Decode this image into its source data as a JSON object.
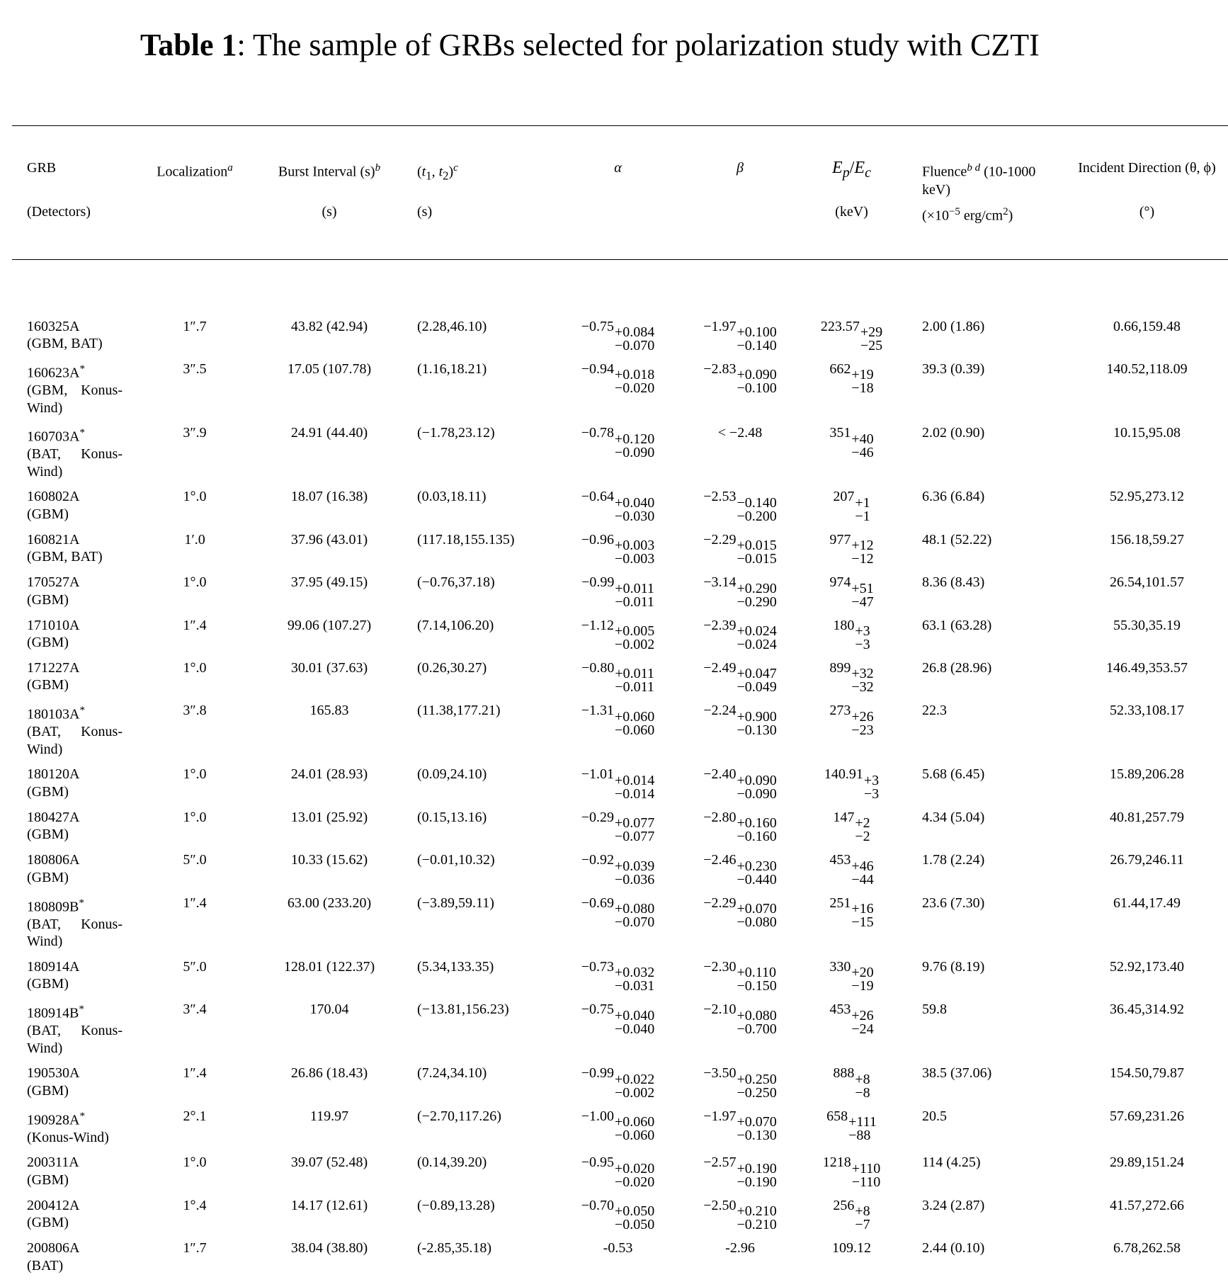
{
  "header": {
    "label": "Table 1",
    "title": ": The sample of GRBs selected for polarization study with CZTI"
  },
  "table": {
    "columns": {
      "grb": {
        "name": "GRB",
        "unit": "(Detectors)"
      },
      "loc": {
        "name": "Localization",
        "sup": "a"
      },
      "burst": {
        "name": "Burst Interval (s)",
        "sup": "b",
        "unit": "(s)"
      },
      "t": {
        "name": [
          "(",
          "t",
          "1",
          ", ",
          "t",
          "2",
          ")"
        ],
        "sup": "c",
        "unit": "(s)"
      },
      "alpha": {
        "name": "α"
      },
      "beta": {
        "name": "β"
      },
      "ep": {
        "name": [
          "E",
          "p",
          "/",
          "E",
          "c"
        ],
        "unit": "(keV)"
      },
      "fluence": {
        "name": "Fluence",
        "sup": "b d",
        "extra": "(10-1000 keV)",
        "unit": [
          "(×10",
          "−5",
          " erg/cm",
          "2",
          ")"
        ]
      },
      "dir": {
        "name": "Incident Direction (θ, ϕ)",
        "unit": "(°)"
      }
    },
    "rows": [
      {
        "grb": "160325A",
        "det": "(GBM, BAT)",
        "loc": "1″.7",
        "burst": "43.82 (42.94)",
        "t": "(2.28,46.10)",
        "alpha": [
          "−0.75",
          "+0.084",
          "−0.070"
        ],
        "beta": [
          "−1.97",
          "+0.100",
          "−0.140"
        ],
        "ep": [
          "223.57",
          "+29",
          "−25"
        ],
        "fluence": "2.00 (1.86)",
        "dir": "0.66,159.48"
      },
      {
        "grb": "160623A",
        "mark": "*",
        "det": "(GBM, Konus-Wind)",
        "loc": "3″.5",
        "burst": "17.05 (107.78)",
        "t": "(1.16,18.21)",
        "alpha": [
          "−0.94",
          "+0.018",
          "−0.020"
        ],
        "beta": [
          "−2.83",
          "+0.090",
          "−0.100"
        ],
        "ep": [
          "662",
          "+19",
          "−18"
        ],
        "fluence": "39.3 (0.39)",
        "dir": "140.52,118.09"
      },
      {
        "grb": "160703A",
        "mark": "*",
        "det": "(BAT, Konus-Wind)",
        "loc": "3″.9",
        "burst": "24.91 (44.40)",
        "t": "(−1.78,23.12)",
        "alpha": [
          "−0.78",
          "+0.120",
          "−0.090"
        ],
        "beta": "< −2.48",
        "ep": [
          "351",
          "+40",
          "−46"
        ],
        "fluence": "2.02 (0.90)",
        "dir": "10.15,95.08"
      },
      {
        "grb": "160802A",
        "det": "(GBM)",
        "loc": "1°.0",
        "burst": "18.07 (16.38)",
        "t": "(0.03,18.11)",
        "alpha": [
          "−0.64",
          "+0.040",
          "−0.030"
        ],
        "beta": [
          "−2.53",
          "−0.140",
          "−0.200"
        ],
        "ep": [
          "207",
          "+1",
          "−1"
        ],
        "fluence": "6.36 (6.84)",
        "dir": "52.95,273.12"
      },
      {
        "grb": "160821A",
        "det": "(GBM, BAT)",
        "loc": "1′.0",
        "burst": "37.96 (43.01)",
        "t": "(117.18,155.135)",
        "alpha": [
          "−0.96",
          "+0.003",
          "−0.003"
        ],
        "beta": [
          "−2.29",
          "+0.015",
          "−0.015"
        ],
        "ep": [
          "977",
          "+12",
          "−12"
        ],
        "fluence": "48.1 (52.22)",
        "dir": "156.18,59.27"
      },
      {
        "grb": "170527A",
        "det": "(GBM)",
        "loc": "1°.0",
        "burst": "37.95 (49.15)",
        "t": "(−0.76,37.18)",
        "alpha": [
          "−0.99",
          "+0.011",
          "−0.011"
        ],
        "beta": [
          "−3.14",
          "+0.290",
          "−0.290"
        ],
        "ep": [
          "974",
          "+51",
          "−47"
        ],
        "fluence": "8.36 (8.43)",
        "dir": "26.54,101.57"
      },
      {
        "grb": "171010A",
        "det": "(GBM)",
        "loc": "1″.4",
        "burst": "99.06 (107.27)",
        "t": "(7.14,106.20)",
        "alpha": [
          "−1.12",
          "+0.005",
          "−0.002"
        ],
        "beta": [
          "−2.39",
          "+0.024",
          "−0.024"
        ],
        "ep": [
          "180",
          "+3",
          "−3"
        ],
        "fluence": "63.1 (63.28)",
        "dir": "55.30,35.19"
      },
      {
        "grb": "171227A",
        "det": "(GBM)",
        "loc": "1°.0",
        "burst": "30.01 (37.63)",
        "t": "(0.26,30.27)",
        "alpha": [
          "−0.80",
          "+0.011",
          "−0.011"
        ],
        "beta": [
          "−2.49",
          "+0.047",
          "−0.049"
        ],
        "ep": [
          "899",
          "+32",
          "−32"
        ],
        "fluence": "26.8 (28.96)",
        "dir": "146.49,353.57"
      },
      {
        "grb": "180103A",
        "mark": "*",
        "det": "(BAT, Konus-Wind)",
        "loc": "3″.8",
        "burst": "165.83",
        "t": "(11.38,177.21)",
        "alpha": [
          "−1.31",
          "+0.060",
          "−0.060"
        ],
        "beta": [
          "−2.24",
          "+0.900",
          "−0.130"
        ],
        "ep": [
          "273",
          "+26",
          "−23"
        ],
        "fluence": "22.3",
        "dir": "52.33,108.17"
      },
      {
        "grb": "180120A",
        "det": "(GBM)",
        "loc": "1°.0",
        "burst": "24.01 (28.93)",
        "t": "(0.09,24.10)",
        "alpha": [
          "−1.01",
          "+0.014",
          "−0.014"
        ],
        "beta": [
          "−2.40",
          "+0.090",
          "−0.090"
        ],
        "ep": [
          "140.91",
          "+3",
          "−3"
        ],
        "fluence": "5.68 (6.45)",
        "dir": "15.89,206.28"
      },
      {
        "grb": "180427A",
        "det": "(GBM)",
        "loc": "1°.0",
        "burst": "13.01 (25.92)",
        "t": "(0.15,13.16)",
        "alpha": [
          "−0.29",
          "+0.077",
          "−0.077"
        ],
        "beta": [
          "−2.80",
          "+0.160",
          "−0.160"
        ],
        "ep": [
          "147",
          "+2",
          "−2"
        ],
        "fluence": "4.34 (5.04)",
        "dir": "40.81,257.79"
      },
      {
        "grb": "180806A",
        "det": "(GBM)",
        "loc": "5″.0",
        "burst": "10.33 (15.62)",
        "t": "(−0.01,10.32)",
        "alpha": [
          "−0.92",
          "+0.039",
          "−0.036"
        ],
        "beta": [
          "−2.46",
          "+0.230",
          "−0.440"
        ],
        "ep": [
          "453",
          "+46",
          "−44"
        ],
        "fluence": "1.78 (2.24)",
        "dir": "26.79,246.11"
      },
      {
        "grb": "180809B",
        "mark": "*",
        "det": "(BAT, Konus-Wind)",
        "loc": "1″.4",
        "burst": "63.00 (233.20)",
        "t": "(−3.89,59.11)",
        "alpha": [
          "−0.69",
          "+0.080",
          "−0.070"
        ],
        "beta": [
          "−2.29",
          "+0.070",
          "−0.080"
        ],
        "ep": [
          "251",
          "+16",
          "−15"
        ],
        "fluence": "23.6 (7.30)",
        "dir": "61.44,17.49"
      },
      {
        "grb": "180914A",
        "det": "(GBM)",
        "loc": "5″.0",
        "burst": "128.01 (122.37)",
        "t": "(5.34,133.35)",
        "alpha": [
          "−0.73",
          "+0.032",
          "−0.031"
        ],
        "beta": [
          "−2.30",
          "+0.110",
          "−0.150"
        ],
        "ep": [
          "330",
          "+20",
          "−19"
        ],
        "fluence": "9.76 (8.19)",
        "dir": "52.92,173.40"
      },
      {
        "grb": "180914B",
        "mark": "*",
        "det": "(BAT, Konus-Wind)",
        "loc": "3″.4",
        "burst": "170.04",
        "t": "(−13.81,156.23)",
        "alpha": [
          "−0.75",
          "+0.040",
          "−0.040"
        ],
        "beta": [
          "−2.10",
          "+0.080",
          "−0.700"
        ],
        "ep": [
          "453",
          "+26",
          "−24"
        ],
        "fluence": "59.8",
        "dir": "36.45,314.92"
      },
      {
        "grb": "190530A",
        "det": "(GBM)",
        "loc": "1″.4",
        "burst": "26.86 (18.43)",
        "t": "(7.24,34.10)",
        "alpha": [
          "−0.99",
          "+0.022",
          "−0.002"
        ],
        "beta": [
          "−3.50",
          "+0.250",
          "−0.250"
        ],
        "ep": [
          "888",
          "+8",
          "−8"
        ],
        "fluence": "38.5 (37.06)",
        "dir": "154.50,79.87"
      },
      {
        "grb": "190928A",
        "mark": "*",
        "det": "(Konus-Wind)",
        "loc": "2°.1",
        "burst": "119.97",
        "t": "(−2.70,117.26)",
        "alpha": [
          "−1.00",
          "+0.060",
          "−0.060"
        ],
        "beta": [
          "−1.97",
          "+0.070",
          "−0.130"
        ],
        "ep": [
          "658",
          "+111",
          "−88"
        ],
        "fluence": "20.5",
        "dir": "57.69,231.26"
      },
      {
        "grb": "200311A",
        "det": "(GBM)",
        "loc": "1°.0",
        "burst": "39.07 (52.48)",
        "t": "(0.14,39.20)",
        "alpha": [
          "−0.95",
          "+0.020",
          "−0.020"
        ],
        "beta": [
          "−2.57",
          "+0.190",
          "−0.190"
        ],
        "ep": [
          "1218",
          "+110",
          "−110"
        ],
        "fluence": "114 (4.25)",
        "dir": "29.89,151.24"
      },
      {
        "grb": "200412A",
        "det": "(GBM)",
        "loc": "1°.4",
        "burst": "14.17 (12.61)",
        "t": "(−0.89,13.28)",
        "alpha": [
          "−0.70",
          "+0.050",
          "−0.050"
        ],
        "beta": [
          "−2.50",
          "+0.210",
          "−0.210"
        ],
        "ep": [
          "256",
          "+8",
          "−7"
        ],
        "fluence": "3.24 (2.87)",
        "dir": "41.57,272.66"
      },
      {
        "grb": "200806A",
        "det": "(BAT)",
        "loc": "1″.7",
        "burst": "38.04 (38.80)",
        "t": "(-2.85,35.18)",
        "alpha": "-0.53",
        "beta": "-2.96",
        "ep": "109.12",
        "fluence": "2.44 (0.10)",
        "dir": "6.78,262.58"
      }
    ]
  }
}
